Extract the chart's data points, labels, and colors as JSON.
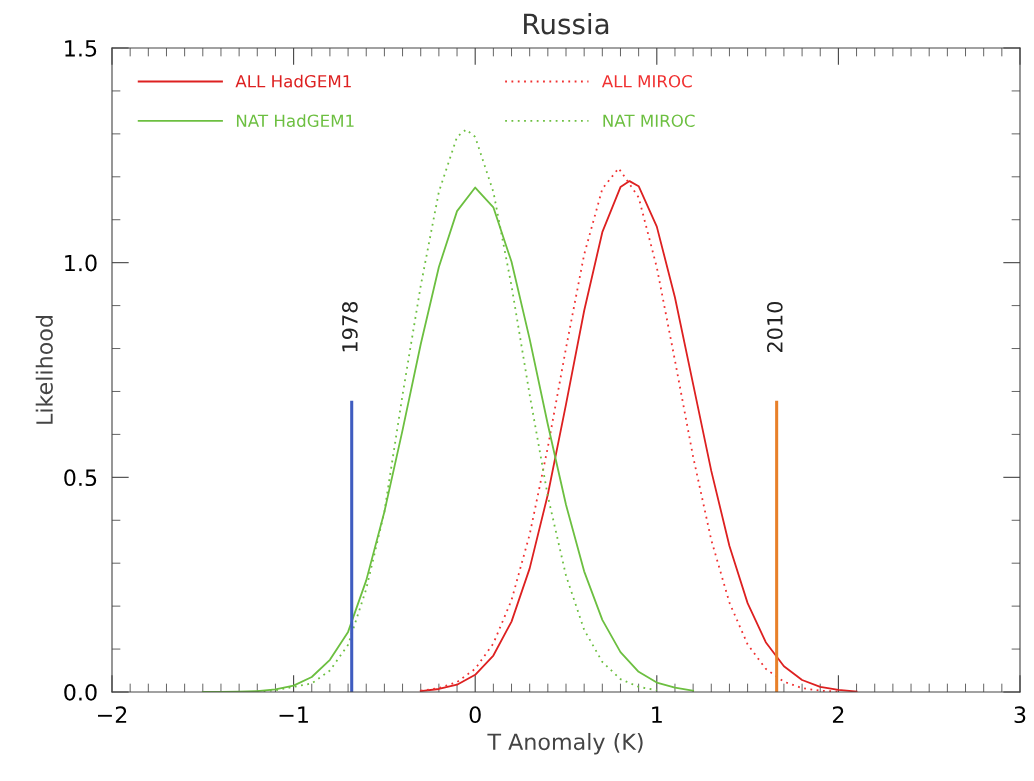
{
  "chart_data": {
    "type": "line",
    "title": "Russia",
    "xlabel": "T Anomaly (K)",
    "ylabel": "Likelihood",
    "xlim": [
      -2,
      3
    ],
    "ylim": [
      0,
      1.5
    ],
    "xticks": [
      {
        "value": -2,
        "label": "−2"
      },
      {
        "value": -1,
        "label": "−1"
      },
      0,
      1,
      2,
      3
    ],
    "yticks": [
      {
        "value": 0,
        "label": "0.0"
      },
      {
        "value": 0.5,
        "label": "0.5"
      },
      {
        "value": 1,
        "label": "1.0"
      },
      {
        "value": 1.5,
        "label": "1.5"
      }
    ],
    "grid": false,
    "legend": "top left",
    "marker": "none",
    "series": [
      {
        "name": "ALL HadGEM1",
        "color": "#dd2020",
        "line_style": "solid",
        "x": [
          -0.3,
          -0.2,
          -0.1,
          0.0,
          0.1,
          0.2,
          0.3,
          0.4,
          0.5,
          0.6,
          0.7,
          0.8,
          0.85,
          0.9,
          1.0,
          1.1,
          1.2,
          1.3,
          1.4,
          1.5,
          1.6,
          1.7,
          1.8,
          1.9,
          2.0,
          2.1
        ],
        "values": [
          0.002,
          0.007,
          0.017,
          0.04,
          0.085,
          0.164,
          0.288,
          0.46,
          0.67,
          0.888,
          1.071,
          1.176,
          1.19,
          1.178,
          1.084,
          0.919,
          0.717,
          0.515,
          0.34,
          0.207,
          0.116,
          0.06,
          0.028,
          0.012,
          0.005,
          0.001
        ]
      },
      {
        "name": "ALL MIROC",
        "color": "#f03030",
        "line_style": "dotted",
        "x": [
          -0.3,
          -0.2,
          -0.1,
          0.0,
          0.1,
          0.2,
          0.3,
          0.4,
          0.5,
          0.6,
          0.7,
          0.79,
          0.9,
          1.0,
          1.1,
          1.2,
          1.3,
          1.4,
          1.5,
          1.6,
          1.7,
          1.8,
          1.9,
          2.0
        ],
        "values": [
          0.003,
          0.009,
          0.023,
          0.054,
          0.113,
          0.214,
          0.367,
          0.57,
          0.801,
          1.019,
          1.172,
          1.22,
          1.152,
          0.989,
          0.772,
          0.548,
          0.354,
          0.208,
          0.111,
          0.054,
          0.024,
          0.009,
          0.003,
          0.001
        ]
      },
      {
        "name": "NAT HadGEM1",
        "color": "#6cbf40",
        "line_style": "solid",
        "x": [
          -1.5,
          -1.4,
          -1.3,
          -1.2,
          -1.1,
          -1.0,
          -0.9,
          -0.8,
          -0.7,
          -0.6,
          -0.5,
          -0.4,
          -0.3,
          -0.2,
          -0.1,
          0.0,
          0.1,
          0.2,
          0.3,
          0.4,
          0.5,
          0.6,
          0.7,
          0.8,
          0.9,
          1.0,
          1.1,
          1.2
        ],
        "values": [
          0,
          0,
          0.001,
          0.002,
          0.006,
          0.015,
          0.035,
          0.075,
          0.14,
          0.26,
          0.42,
          0.61,
          0.81,
          0.99,
          1.12,
          1.175,
          1.129,
          1.002,
          0.822,
          0.623,
          0.436,
          0.281,
          0.168,
          0.093,
          0.047,
          0.022,
          0.01,
          0.003
        ]
      },
      {
        "name": "NAT MIROC",
        "color": "#6cbf40",
        "line_style": "dotted",
        "x": [
          -1.2,
          -1.1,
          -1.0,
          -0.9,
          -0.8,
          -0.7,
          -0.6,
          -0.5,
          -0.4,
          -0.3,
          -0.2,
          -0.1,
          -0.05,
          0.0,
          0.1,
          0.2,
          0.3,
          0.4,
          0.5,
          0.6,
          0.7,
          0.8,
          0.9,
          1.0
        ],
        "values": [
          0.001,
          0.004,
          0.012,
          0.02,
          0.05,
          0.11,
          0.24,
          0.42,
          0.692,
          0.946,
          1.165,
          1.293,
          1.31,
          1.293,
          1.165,
          0.946,
          0.692,
          0.456,
          0.271,
          0.145,
          0.07,
          0.03,
          0.012,
          0.004
        ]
      },
      {
        "color": "#3f5cc0",
        "line_style": "solid",
        "x": [
          -0.68,
          -0.68
        ],
        "values": [
          0,
          0.675
        ]
      },
      {
        "color": "#e8802a",
        "line_style": "solid",
        "x": [
          1.66,
          1.66
        ],
        "values": [
          0,
          0.675
        ]
      }
    ],
    "annotations": [
      {
        "text": "1978",
        "x": -0.68,
        "y": 0.675
      },
      {
        "text": "2010",
        "x": 1.66,
        "y": 0.675
      }
    ]
  }
}
